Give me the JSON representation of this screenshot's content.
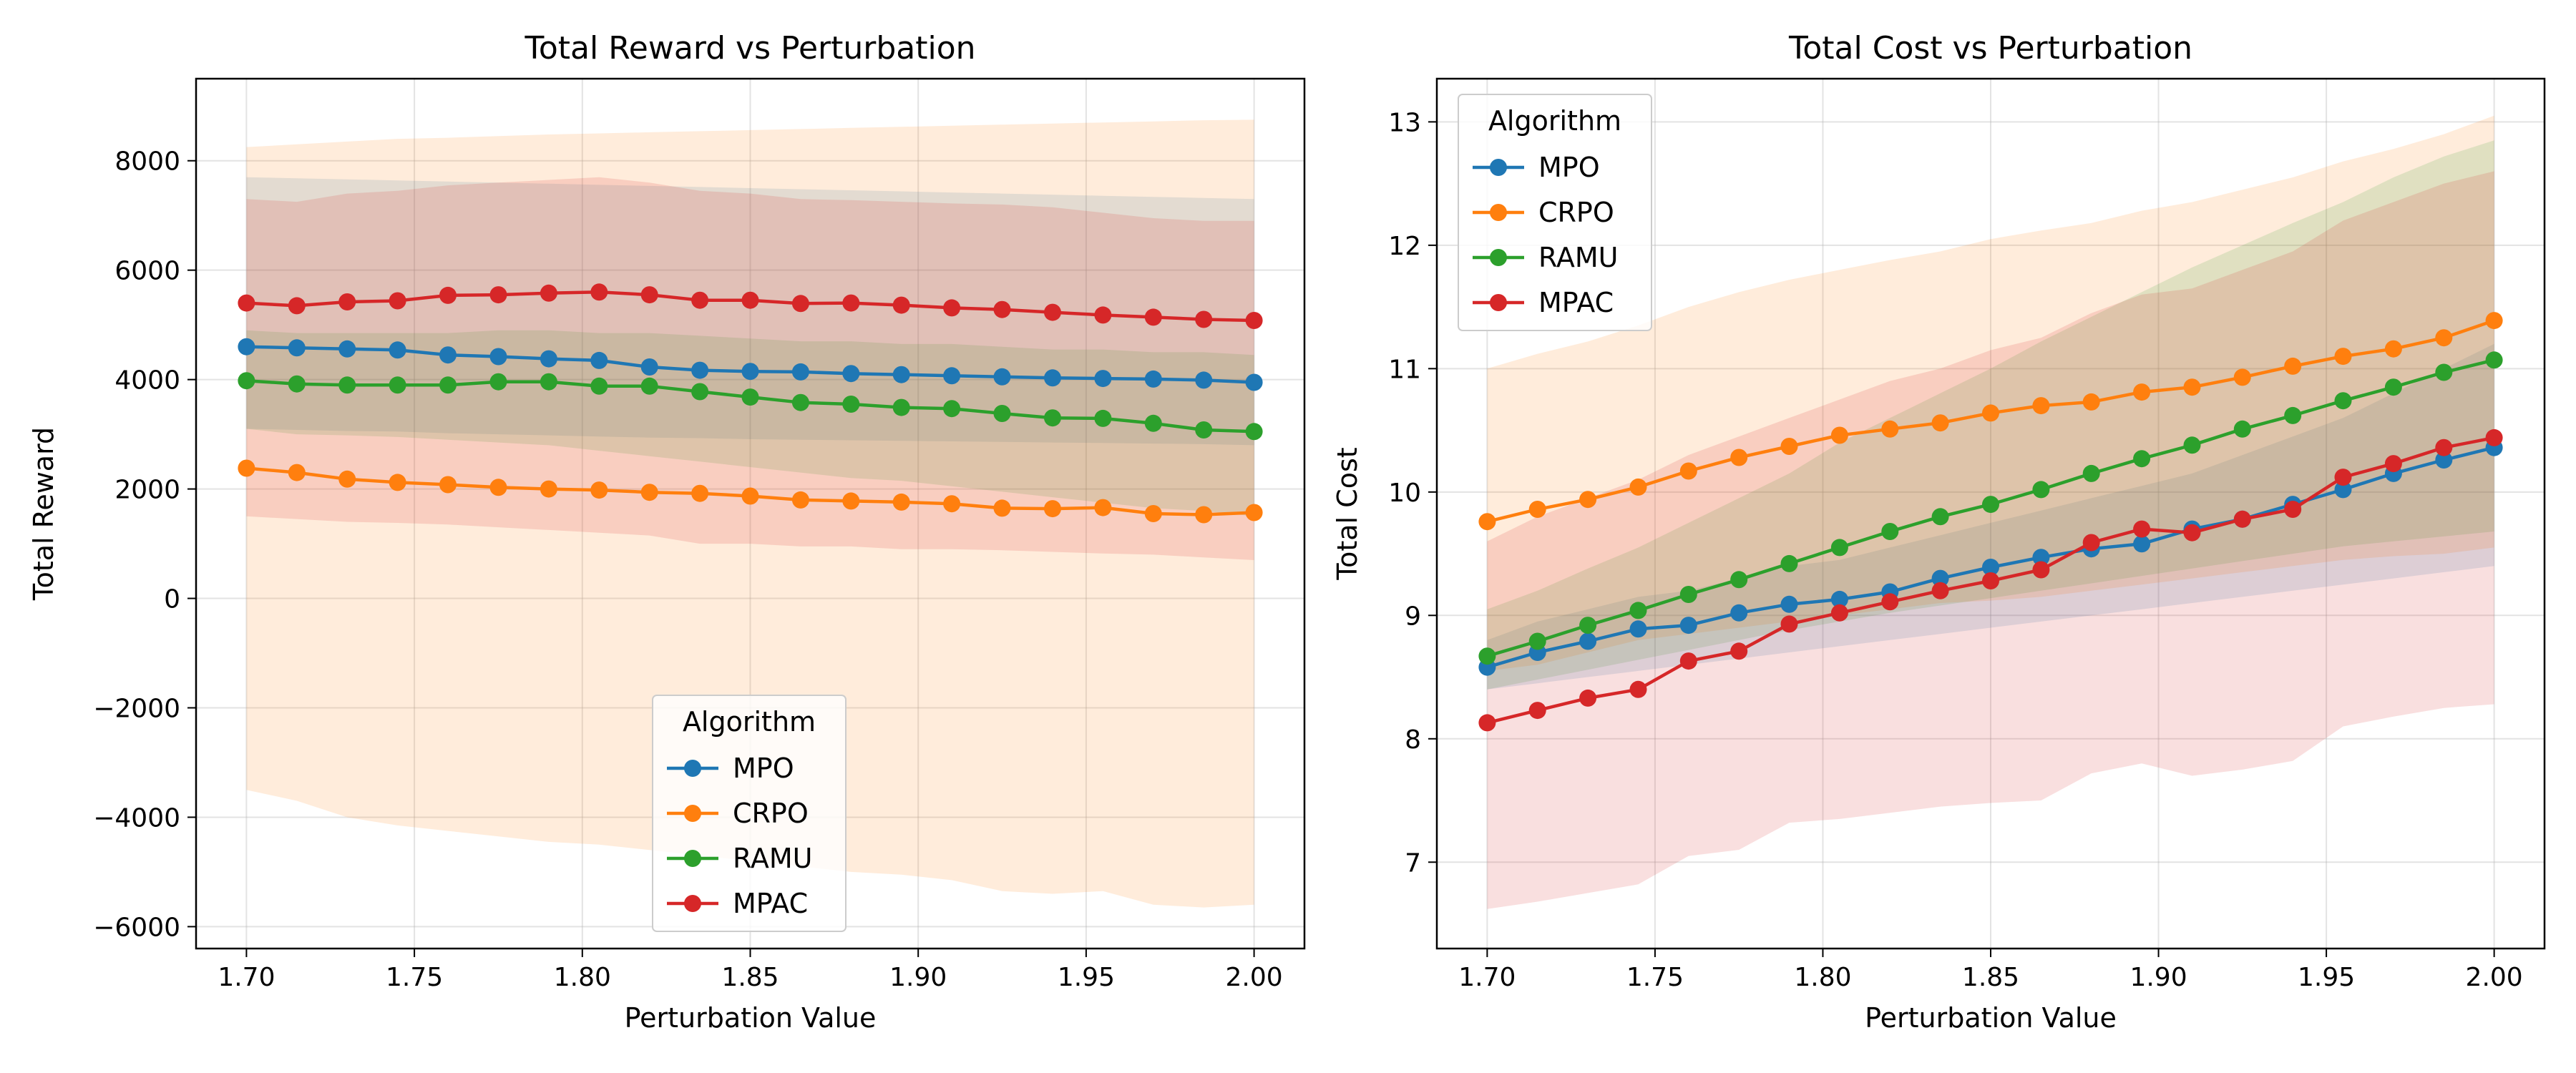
{
  "chart_data": [
    {
      "type": "line",
      "title": "Total Reward vs Perturbation",
      "xlabel": "Perturbation Value",
      "ylabel": "Total Reward",
      "xlim": [
        1.685,
        2.015
      ],
      "ylim": [
        -6400,
        9500
      ],
      "xticks": [
        1.7,
        1.75,
        1.8,
        1.85,
        1.9,
        1.95,
        2.0
      ],
      "xtick_labels": [
        "1.70",
        "1.75",
        "1.80",
        "1.85",
        "1.90",
        "1.95",
        "2.00"
      ],
      "yticks": [
        -6000,
        -4000,
        -2000,
        0,
        2000,
        4000,
        6000,
        8000
      ],
      "ytick_labels": [
        "−6000",
        "−4000",
        "−2000",
        "0",
        "2000",
        "4000",
        "6000",
        "8000"
      ],
      "grid": true,
      "legend": {
        "title": "Algorithm",
        "position": "lower-center"
      },
      "x": [
        1.7,
        1.715,
        1.73,
        1.745,
        1.76,
        1.775,
        1.79,
        1.805,
        1.82,
        1.835,
        1.85,
        1.865,
        1.88,
        1.895,
        1.91,
        1.925,
        1.94,
        1.955,
        1.97,
        1.985,
        2.0
      ],
      "series": [
        {
          "name": "MPO",
          "color": "#1f77b4",
          "values": [
            4600,
            4580,
            4560,
            4540,
            4450,
            4420,
            4380,
            4350,
            4230,
            4170,
            4150,
            4140,
            4110,
            4090,
            4070,
            4050,
            4030,
            4020,
            4010,
            3990,
            3950
          ],
          "lower": [
            3100,
            3080,
            3060,
            3050,
            3020,
            3000,
            2980,
            2960,
            2940,
            2930,
            2910,
            2900,
            2890,
            2880,
            2870,
            2860,
            2850,
            2840,
            2830,
            2820,
            2800
          ],
          "upper": [
            7700,
            7680,
            7660,
            7640,
            7620,
            7600,
            7580,
            7560,
            7540,
            7520,
            7500,
            7480,
            7460,
            7440,
            7420,
            7400,
            7380,
            7360,
            7340,
            7320,
            7300
          ]
        },
        {
          "name": "CRPO",
          "color": "#ff7f0e",
          "values": [
            2380,
            2300,
            2180,
            2120,
            2080,
            2030,
            2000,
            1980,
            1940,
            1920,
            1870,
            1800,
            1780,
            1760,
            1730,
            1650,
            1640,
            1660,
            1550,
            1530,
            1570
          ],
          "lower": [
            -3500,
            -3700,
            -4000,
            -4150,
            -4250,
            -4350,
            -4450,
            -4500,
            -4600,
            -4700,
            -4800,
            -4900,
            -5000,
            -5050,
            -5150,
            -5350,
            -5400,
            -5350,
            -5600,
            -5650,
            -5600
          ],
          "upper": [
            8250,
            8300,
            8350,
            8400,
            8420,
            8450,
            8480,
            8500,
            8520,
            8540,
            8560,
            8580,
            8600,
            8620,
            8640,
            8660,
            8680,
            8700,
            8720,
            8740,
            8750
          ]
        },
        {
          "name": "RAMU",
          "color": "#2ca02c",
          "values": [
            3980,
            3920,
            3900,
            3900,
            3900,
            3960,
            3960,
            3880,
            3880,
            3780,
            3680,
            3580,
            3550,
            3490,
            3470,
            3380,
            3300,
            3290,
            3200,
            3080,
            3050
          ],
          "lower": [
            3100,
            3000,
            2980,
            2950,
            2900,
            2850,
            2800,
            2700,
            2600,
            2500,
            2400,
            2300,
            2200,
            2150,
            2050,
            1950,
            1850,
            1750,
            1650,
            1600,
            1500
          ],
          "upper": [
            4900,
            4850,
            4850,
            4850,
            4850,
            4900,
            4900,
            4850,
            4850,
            4800,
            4750,
            4700,
            4700,
            4650,
            4650,
            4600,
            4550,
            4550,
            4500,
            4500,
            4450
          ]
        },
        {
          "name": "MPAC",
          "color": "#d62728",
          "values": [
            5400,
            5350,
            5420,
            5440,
            5540,
            5550,
            5580,
            5600,
            5550,
            5450,
            5450,
            5390,
            5400,
            5360,
            5310,
            5280,
            5230,
            5180,
            5140,
            5100,
            5080
          ],
          "lower": [
            1500,
            1450,
            1400,
            1380,
            1350,
            1300,
            1250,
            1200,
            1150,
            1000,
            1000,
            950,
            950,
            900,
            900,
            880,
            850,
            820,
            800,
            750,
            700
          ],
          "upper": [
            7300,
            7250,
            7400,
            7450,
            7550,
            7600,
            7650,
            7700,
            7600,
            7450,
            7400,
            7300,
            7280,
            7250,
            7220,
            7200,
            7150,
            7050,
            6950,
            6900,
            6900
          ]
        }
      ]
    },
    {
      "type": "line",
      "title": "Total Cost vs Perturbation",
      "xlabel": "Perturbation Value",
      "ylabel": "Total Cost",
      "xlim": [
        1.685,
        2.015
      ],
      "ylim": [
        6.3,
        13.35
      ],
      "xticks": [
        1.7,
        1.75,
        1.8,
        1.85,
        1.9,
        1.95,
        2.0
      ],
      "xtick_labels": [
        "1.70",
        "1.75",
        "1.80",
        "1.85",
        "1.90",
        "1.95",
        "2.00"
      ],
      "yticks": [
        7,
        8,
        9,
        10,
        11,
        12,
        13
      ],
      "ytick_labels": [
        "7",
        "8",
        "9",
        "10",
        "11",
        "12",
        "13"
      ],
      "grid": true,
      "legend": {
        "title": "Algorithm",
        "position": "top-left"
      },
      "x": [
        1.7,
        1.715,
        1.73,
        1.745,
        1.76,
        1.775,
        1.79,
        1.805,
        1.82,
        1.835,
        1.85,
        1.865,
        1.88,
        1.895,
        1.91,
        1.925,
        1.94,
        1.955,
        1.97,
        1.985,
        2.0
      ],
      "series": [
        {
          "name": "MPO",
          "color": "#1f77b4",
          "values": [
            8.58,
            8.7,
            8.79,
            8.89,
            8.92,
            9.02,
            9.09,
            9.13,
            9.19,
            9.3,
            9.39,
            9.47,
            9.54,
            9.58,
            9.7,
            9.78,
            9.9,
            10.02,
            10.15,
            10.26,
            10.36
          ],
          "lower": [
            8.4,
            8.45,
            8.5,
            8.55,
            8.6,
            8.65,
            8.7,
            8.75,
            8.8,
            8.85,
            8.9,
            8.95,
            9.0,
            9.05,
            9.1,
            9.15,
            9.2,
            9.25,
            9.3,
            9.35,
            9.4
          ],
          "upper": [
            8.8,
            8.95,
            9.05,
            9.15,
            9.2,
            9.3,
            9.4,
            9.45,
            9.55,
            9.65,
            9.75,
            9.85,
            9.95,
            10.05,
            10.15,
            10.3,
            10.45,
            10.6,
            10.8,
            11.0,
            11.2
          ]
        },
        {
          "name": "CRPO",
          "color": "#ff7f0e",
          "values": [
            9.76,
            9.86,
            9.94,
            10.04,
            10.17,
            10.28,
            10.37,
            10.46,
            10.51,
            10.56,
            10.64,
            10.7,
            10.73,
            10.81,
            10.85,
            10.93,
            11.02,
            11.1,
            11.16,
            11.25,
            11.39
          ],
          "lower": [
            8.55,
            8.6,
            8.7,
            8.8,
            8.85,
            8.9,
            8.95,
            9.0,
            9.05,
            9.1,
            9.12,
            9.15,
            9.2,
            9.25,
            9.3,
            9.35,
            9.4,
            9.45,
            9.48,
            9.5,
            9.55
          ],
          "upper": [
            11.0,
            11.12,
            11.22,
            11.35,
            11.5,
            11.62,
            11.72,
            11.8,
            11.88,
            11.95,
            12.05,
            12.12,
            12.18,
            12.28,
            12.35,
            12.45,
            12.55,
            12.68,
            12.78,
            12.9,
            13.05
          ]
        },
        {
          "name": "RAMU",
          "color": "#2ca02c",
          "values": [
            8.67,
            8.79,
            8.92,
            9.04,
            9.17,
            9.29,
            9.42,
            9.55,
            9.68,
            9.8,
            9.9,
            10.02,
            10.15,
            10.27,
            10.38,
            10.51,
            10.62,
            10.74,
            10.85,
            10.97,
            11.07
          ],
          "lower": [
            8.4,
            8.48,
            8.56,
            8.64,
            8.72,
            8.8,
            8.88,
            8.95,
            9.02,
            9.08,
            9.14,
            9.2,
            9.26,
            9.32,
            9.38,
            9.44,
            9.5,
            9.56,
            9.6,
            9.64,
            9.68
          ],
          "upper": [
            9.05,
            9.2,
            9.38,
            9.55,
            9.75,
            9.95,
            10.15,
            10.4,
            10.6,
            10.8,
            11.0,
            11.22,
            11.42,
            11.62,
            11.82,
            12.0,
            12.18,
            12.35,
            12.55,
            12.72,
            12.85
          ]
        },
        {
          "name": "MPAC",
          "color": "#d62728",
          "values": [
            8.13,
            8.23,
            8.33,
            8.4,
            8.63,
            8.71,
            8.93,
            9.02,
            9.11,
            9.2,
            9.28,
            9.37,
            9.59,
            9.7,
            9.67,
            9.78,
            9.86,
            10.12,
            10.23,
            10.36,
            10.44
          ],
          "lower": [
            6.62,
            6.68,
            6.75,
            6.82,
            7.05,
            7.1,
            7.32,
            7.35,
            7.4,
            7.45,
            7.48,
            7.5,
            7.72,
            7.8,
            7.7,
            7.75,
            7.82,
            8.1,
            8.18,
            8.25,
            8.28
          ],
          "upper": [
            9.6,
            9.8,
            9.95,
            10.1,
            10.3,
            10.45,
            10.6,
            10.75,
            10.9,
            11.0,
            11.15,
            11.25,
            11.45,
            11.6,
            11.65,
            11.8,
            11.95,
            12.2,
            12.35,
            12.5,
            12.6
          ]
        }
      ]
    }
  ]
}
